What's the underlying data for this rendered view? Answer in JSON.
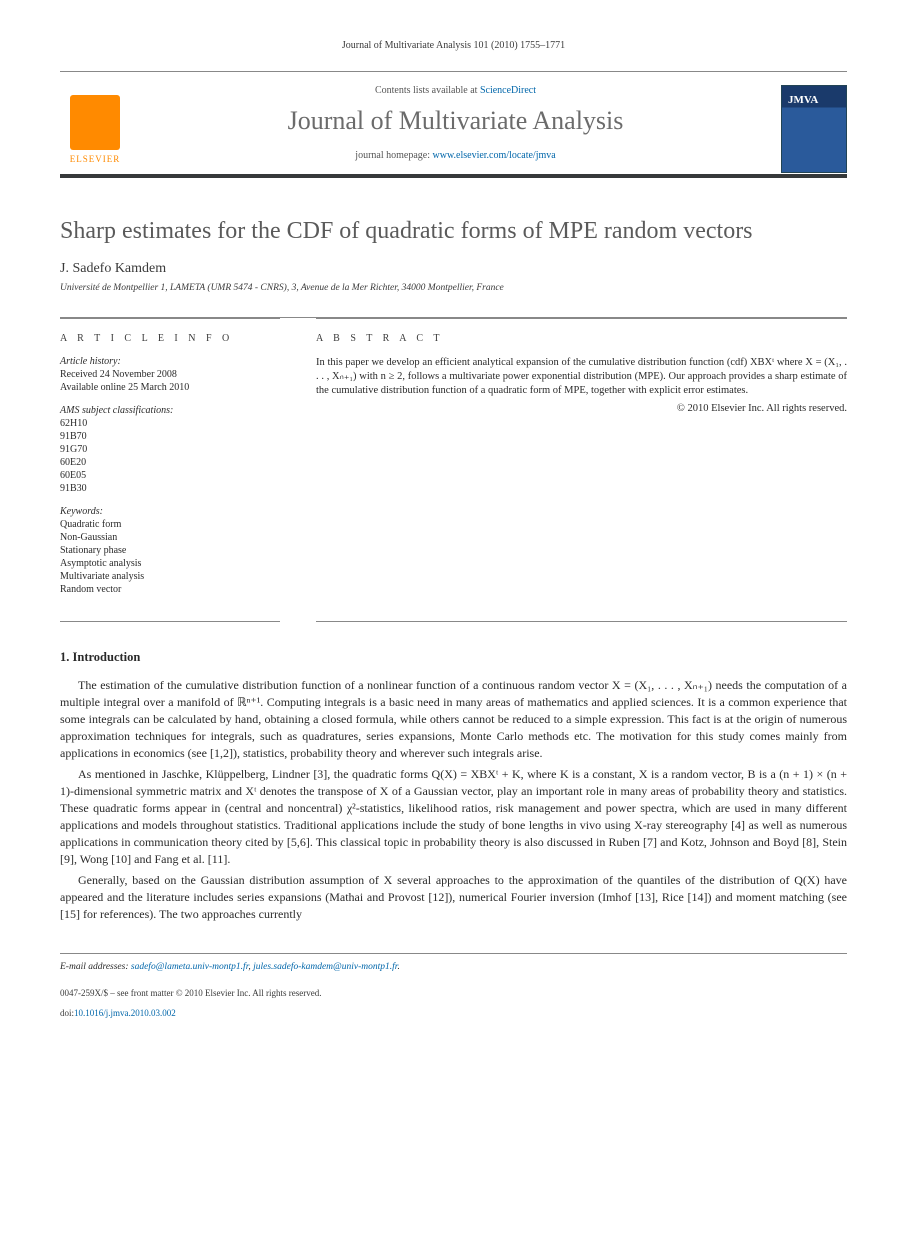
{
  "running_head": "Journal of Multivariate Analysis 101 (2010) 1755–1771",
  "header": {
    "publisher": "ELSEVIER",
    "contents_prefix": "Contents lists available at ",
    "contents_link": "ScienceDirect",
    "journal_title": "Journal of Multivariate Analysis",
    "homepage_prefix": "journal homepage: ",
    "homepage_link": "www.elsevier.com/locate/jmva"
  },
  "article": {
    "title": "Sharp estimates for the CDF of quadratic forms of MPE random vectors",
    "author": "J. Sadefo Kamdem",
    "affiliation": "Université de Montpellier 1, LAMETA (UMR 5474 - CNRS), 3, Avenue de la Mer Richter, 34000 Montpellier, France"
  },
  "info": {
    "heading": "A R T I C L E   I N F O",
    "history_head": "Article history:",
    "history": [
      "Received 24 November 2008",
      "Available online 25 March 2010"
    ],
    "ams_head": "AMS subject classifications:",
    "ams": [
      "62H10",
      "91B70",
      "91G70",
      "60E20",
      "60E05",
      "91B30"
    ],
    "kw_head": "Keywords:",
    "keywords": [
      "Quadratic form",
      "Non-Gaussian",
      "Stationary phase",
      "Asymptotic analysis",
      "Multivariate analysis",
      "Random vector"
    ]
  },
  "abstract": {
    "heading": "A B S T R A C T",
    "text": "In this paper we develop an efficient analytical expansion of the cumulative distribution function (cdf) XBXᵗ where X = (X₁, . . . , Xₙ₊₁) with n ≥ 2, follows a multivariate power exponential distribution (MPE). Our approach provides a sharp estimate of the cumulative distribution function of a quadratic form of MPE, together with explicit error estimates.",
    "copyright": "© 2010 Elsevier Inc. All rights reserved."
  },
  "section1": {
    "heading": "1. Introduction",
    "p1": "The estimation of the cumulative distribution function of a nonlinear function of a continuous random vector X = (X₁, . . . , Xₙ₊₁) needs the computation of a multiple integral over a manifold of ℝⁿ⁺¹. Computing integrals is a basic need in many areas of mathematics and applied sciences. It is a common experience that some integrals can be calculated by hand, obtaining a closed formula, while others cannot be reduced to a simple expression. This fact is at the origin of numerous approximation techniques for integrals, such as quadratures, series expansions, Monte Carlo methods etc. The motivation for this study comes mainly from applications in economics (see [1,2]), statistics, probability theory and wherever such integrals arise.",
    "p2": "As mentioned in Jaschke, Klüppelberg, Lindner [3], the quadratic forms Q(X) = XBXᵗ + K, where K is a constant, X is a random vector, B is a (n + 1) × (n + 1)-dimensional symmetric matrix and Xᵗ denotes the transpose of X of a Gaussian vector, play an important role in many areas of probability theory and statistics. These quadratic forms appear in (central and noncentral) χ²-statistics, likelihood ratios, risk management and power spectra, which are used in many different applications and models throughout statistics. Traditional applications include the study of bone lengths in vivo using X-ray stereography [4] as well as numerous applications in communication theory cited by [5,6]. This classical topic in probability theory is also discussed in Ruben [7] and Kotz, Johnson and Boyd [8], Stein [9], Wong [10] and Fang et al. [11].",
    "p3": "Generally, based on the Gaussian distribution assumption of X several approaches to the approximation of the quantiles of the distribution of Q(X) have appeared and the literature includes series expansions (Mathai and Provost [12]), numerical Fourier inversion (Imhof [13], Rice [14]) and moment matching (see [15] for references). The two approaches currently"
  },
  "footer": {
    "email_label": "E-mail addresses: ",
    "email1": "sadefo@lameta.univ-montp1.fr",
    "email2": "jules.sadefo-kamdem@univ-montp1.fr",
    "frontmatter": "0047-259X/$ – see front matter © 2010 Elsevier Inc. All rights reserved.",
    "doi_prefix": "doi:",
    "doi": "10.1016/j.jmva.2010.03.002"
  },
  "colors": {
    "elsevier_orange": "#ff8a00",
    "link_blue": "#0066aa",
    "rule_dark": "#36393a",
    "rule_light": "#888888",
    "title_grey": "#5a5a5a",
    "journal_grey": "#6b6b6b"
  }
}
